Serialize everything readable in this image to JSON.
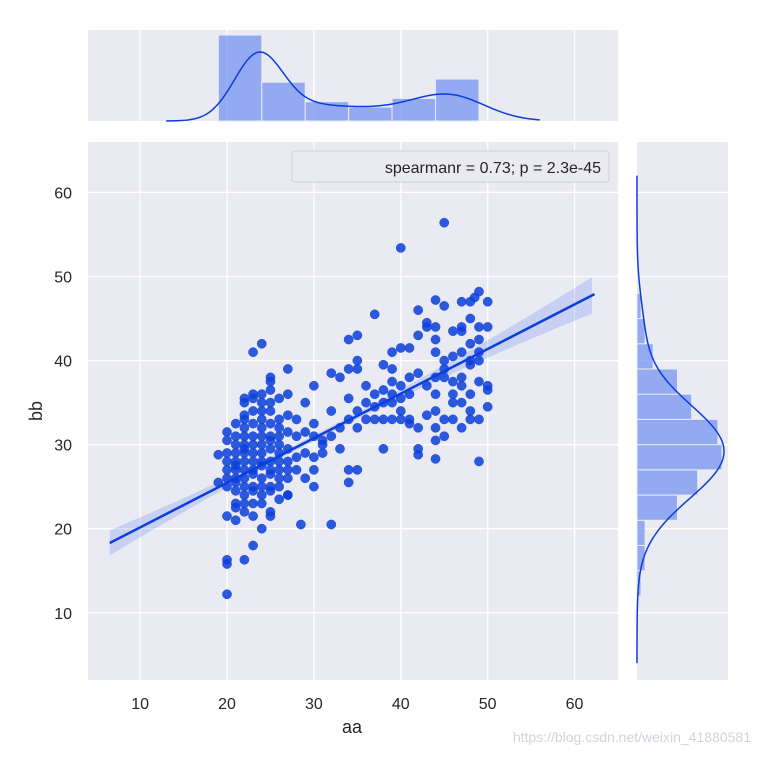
{
  "chart_data": {
    "type": "scatter",
    "xlabel": "aa",
    "ylabel": "bb",
    "xlim": [
      4,
      65
    ],
    "ylim": [
      2,
      66
    ],
    "xticks": [
      "10",
      "20",
      "30",
      "40",
      "50",
      "60"
    ],
    "yticks": [
      "10",
      "20",
      "30",
      "40",
      "50",
      "60"
    ],
    "grid": true,
    "legend": {
      "text": "spearmanr = 0.73; p = 2.3e-45",
      "position": "top-right"
    },
    "regression": {
      "x": [
        6.5,
        62.3
      ],
      "y": [
        18.3,
        47.9
      ]
    },
    "points": [
      [
        20,
        12.2
      ],
      [
        20,
        15.8
      ],
      [
        20,
        16.3
      ],
      [
        22,
        16.3
      ],
      [
        23,
        18
      ],
      [
        24,
        20
      ],
      [
        25,
        21.5
      ],
      [
        28.5,
        20.5
      ],
      [
        32,
        20.5
      ],
      [
        21,
        21
      ],
      [
        20,
        21.5
      ],
      [
        21,
        22.5
      ],
      [
        22,
        23
      ],
      [
        23,
        21.5
      ],
      [
        24,
        23
      ],
      [
        25,
        22
      ],
      [
        26,
        23.5
      ],
      [
        27,
        24
      ],
      [
        21,
        24.5
      ],
      [
        22,
        25
      ],
      [
        20,
        26
      ],
      [
        21,
        26
      ],
      [
        23,
        25
      ],
      [
        24,
        26
      ],
      [
        25,
        25
      ],
      [
        26,
        25
      ],
      [
        27,
        24
      ],
      [
        19,
        25.5
      ],
      [
        20,
        27
      ],
      [
        21,
        27.5
      ],
      [
        22,
        28
      ],
      [
        23,
        27
      ],
      [
        24,
        28
      ],
      [
        25,
        27
      ],
      [
        26,
        28
      ],
      [
        27,
        27
      ],
      [
        19,
        28.8
      ],
      [
        20,
        29
      ],
      [
        21,
        29
      ],
      [
        22,
        30
      ],
      [
        23,
        29
      ],
      [
        24,
        30
      ],
      [
        25,
        29.5
      ],
      [
        26,
        30
      ],
      [
        27,
        29.5
      ],
      [
        20,
        30.5
      ],
      [
        21,
        31
      ],
      [
        22,
        32
      ],
      [
        23,
        31
      ],
      [
        24,
        32
      ],
      [
        25,
        31
      ],
      [
        26,
        32
      ],
      [
        27,
        31.5
      ],
      [
        22,
        33
      ],
      [
        23,
        34
      ],
      [
        24,
        33
      ],
      [
        25,
        34
      ],
      [
        26,
        33
      ],
      [
        27,
        33.5
      ],
      [
        23,
        35.5
      ],
      [
        24,
        35
      ],
      [
        25,
        35
      ],
      [
        25,
        37.5
      ],
      [
        25,
        38
      ],
      [
        27,
        39
      ],
      [
        23,
        41
      ],
      [
        24,
        42
      ],
      [
        21,
        27
      ],
      [
        22,
        26
      ],
      [
        23,
        26.5
      ],
      [
        24,
        27.5
      ],
      [
        22,
        29.5
      ],
      [
        23,
        30
      ],
      [
        24,
        29
      ],
      [
        25,
        28
      ],
      [
        23,
        24.5
      ],
      [
        21,
        25.5
      ],
      [
        22,
        24
      ],
      [
        28,
        28.5
      ],
      [
        29,
        29
      ],
      [
        30,
        27
      ],
      [
        30,
        25
      ],
      [
        31,
        30
      ],
      [
        28,
        31
      ],
      [
        29,
        31.5
      ],
      [
        30,
        32.5
      ],
      [
        31,
        30.5
      ],
      [
        32,
        31
      ],
      [
        33,
        32
      ],
      [
        34,
        33
      ],
      [
        35,
        34
      ],
      [
        36,
        33
      ],
      [
        37,
        33
      ],
      [
        38,
        33
      ],
      [
        39,
        33
      ],
      [
        40,
        33
      ],
      [
        29,
        35
      ],
      [
        28,
        33
      ],
      [
        30,
        37
      ],
      [
        32,
        38.5
      ],
      [
        33,
        38
      ],
      [
        34,
        39
      ],
      [
        34,
        42.5
      ],
      [
        35,
        40
      ],
      [
        35,
        43
      ],
      [
        37,
        45.5
      ],
      [
        34,
        27
      ],
      [
        33,
        29.5
      ],
      [
        34,
        25.5
      ],
      [
        35,
        27
      ],
      [
        38,
        29.5
      ],
      [
        34,
        35.5
      ],
      [
        35,
        32
      ],
      [
        36,
        35
      ],
      [
        37,
        34.5
      ],
      [
        38,
        36.5
      ],
      [
        39,
        37.5
      ],
      [
        39,
        39
      ],
      [
        40,
        37
      ],
      [
        41,
        36
      ],
      [
        41,
        38
      ],
      [
        42,
        38.5
      ],
      [
        43,
        37
      ],
      [
        44,
        38
      ],
      [
        45,
        39
      ],
      [
        46,
        37.5
      ],
      [
        47,
        38
      ],
      [
        48,
        39.5
      ],
      [
        49,
        40
      ],
      [
        49,
        41
      ],
      [
        38,
        39.5
      ],
      [
        39,
        41
      ],
      [
        40,
        41.5
      ],
      [
        41,
        41.5
      ],
      [
        42,
        43
      ],
      [
        43,
        44.5
      ],
      [
        44,
        44
      ],
      [
        42,
        46
      ],
      [
        43,
        44
      ],
      [
        44,
        47.2
      ],
      [
        45,
        46.5
      ],
      [
        46,
        43.5
      ],
      [
        47,
        43.5
      ],
      [
        47,
        47
      ],
      [
        48,
        47
      ],
      [
        48,
        45
      ],
      [
        49,
        44
      ],
      [
        50,
        44
      ],
      [
        49,
        48.2
      ],
      [
        48.5,
        47.5
      ],
      [
        50,
        47
      ],
      [
        40,
        53.4
      ],
      [
        45,
        56.4
      ],
      [
        38,
        35
      ],
      [
        39,
        36
      ],
      [
        40,
        35.5
      ],
      [
        41,
        32.5
      ],
      [
        41,
        33
      ],
      [
        42,
        32
      ],
      [
        43,
        33.5
      ],
      [
        44,
        32
      ],
      [
        44,
        30.5
      ],
      [
        45,
        31
      ],
      [
        45,
        33
      ],
      [
        46,
        33
      ],
      [
        47,
        32
      ],
      [
        47,
        35
      ],
      [
        48,
        36
      ],
      [
        48,
        34
      ],
      [
        49,
        28
      ],
      [
        50,
        34.5
      ],
      [
        45,
        38
      ],
      [
        46,
        36
      ],
      [
        46,
        35
      ],
      [
        47,
        37
      ],
      [
        48,
        33
      ],
      [
        49,
        33
      ],
      [
        44,
        36
      ],
      [
        44,
        34
      ],
      [
        46,
        40.5
      ],
      [
        47,
        41
      ],
      [
        48,
        40
      ],
      [
        49,
        37.5
      ],
      [
        50,
        37
      ],
      [
        50,
        36.5
      ],
      [
        45,
        40
      ],
      [
        44,
        41
      ],
      [
        44,
        42.5
      ],
      [
        47,
        44
      ],
      [
        48,
        42
      ],
      [
        49,
        42.5
      ],
      [
        42,
        29.5
      ],
      [
        42,
        28.8
      ],
      [
        44,
        28.3
      ],
      [
        40,
        34
      ],
      [
        39,
        35
      ],
      [
        37,
        36
      ],
      [
        36,
        37
      ],
      [
        35,
        39
      ],
      [
        31,
        29
      ],
      [
        30,
        31
      ],
      [
        32,
        34
      ],
      [
        26,
        35.5
      ],
      [
        27,
        36
      ],
      [
        25,
        36.5
      ],
      [
        24,
        36
      ],
      [
        23,
        36
      ],
      [
        22,
        35
      ],
      [
        22,
        33.5
      ],
      [
        21,
        32.5
      ],
      [
        20,
        31.5
      ],
      [
        20,
        28
      ],
      [
        21,
        28
      ],
      [
        20,
        25
      ],
      [
        22,
        27
      ],
      [
        23,
        28
      ],
      [
        24,
        25
      ],
      [
        25,
        24.5
      ],
      [
        26,
        26
      ],
      [
        27,
        26
      ],
      [
        26,
        27
      ],
      [
        25,
        26.5
      ],
      [
        24,
        24
      ],
      [
        23,
        23
      ],
      [
        22,
        22
      ],
      [
        21,
        23
      ],
      [
        24,
        31
      ],
      [
        23,
        32.5
      ],
      [
        25,
        32.5
      ],
      [
        26,
        31
      ],
      [
        22,
        31
      ],
      [
        21,
        30
      ],
      [
        22,
        29
      ],
      [
        26,
        29
      ],
      [
        27,
        28
      ],
      [
        28,
        27
      ],
      [
        29,
        26
      ],
      [
        30,
        28.5
      ],
      [
        25,
        30.5
      ],
      [
        24,
        34
      ],
      [
        22,
        35.5
      ]
    ],
    "x_hist": {
      "bins": [
        19,
        24,
        29,
        34,
        39,
        44,
        49,
        50
      ],
      "counts": [
        80,
        36,
        18,
        13,
        21,
        39,
        0
      ]
    },
    "y_hist": {
      "edges": [
        12,
        15,
        18,
        21,
        24,
        27,
        30,
        33,
        36,
        39,
        42,
        45,
        48
      ],
      "counts": [
        2,
        4,
        4,
        20,
        30,
        42,
        40,
        27,
        20,
        8,
        4,
        2
      ]
    }
  }
}
